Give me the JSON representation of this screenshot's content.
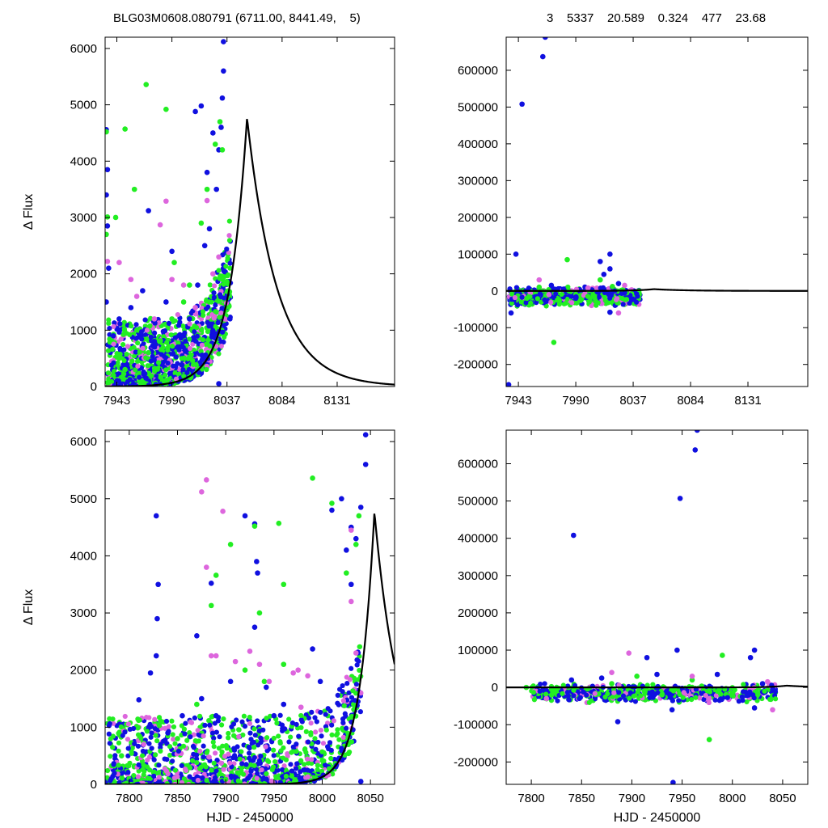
{
  "header": {
    "left": "BLG03M0608.080791 (6711.00, 8441.49,    5)",
    "right": "3    5337    20.589    0.324    477    23.68"
  },
  "colors": {
    "series_blue": "#1010e0",
    "series_green": "#22ee22",
    "series_violet": "#dd66dd",
    "model": "#000000"
  },
  "chart_data": [
    {
      "id": "top-left",
      "type": "scatter",
      "xlabel": "",
      "ylabel": "Δ Flux",
      "xlim": [
        7933,
        8180
      ],
      "ylim": [
        0,
        6200
      ],
      "xticks": [
        7943,
        7990,
        8037,
        8084,
        8131
      ],
      "yticks": [
        0,
        1000,
        2000,
        3000,
        4000,
        5000,
        6000
      ],
      "grid": false,
      "series": [
        {
          "color_key": "series_blue",
          "points": [
            [
              7934,
              4560
            ],
            [
              7935,
              3850
            ],
            [
              7934,
              3400
            ],
            [
              7935,
              2850
            ],
            [
              7936,
              2100
            ],
            [
              7934,
              1500
            ],
            [
              7940,
              900
            ],
            [
              7945,
              1200
            ],
            [
              7950,
              300
            ],
            [
              7955,
              1400
            ],
            [
              7965,
              1700
            ],
            [
              7970,
              3120
            ],
            [
              7975,
              800
            ],
            [
              7985,
              1500
            ],
            [
              7990,
              2400
            ],
            [
              7995,
              700
            ],
            [
              8010,
              4880
            ],
            [
              8015,
              4980
            ],
            [
              8020,
              3800
            ],
            [
              8025,
              4500
            ],
            [
              8030,
              4200
            ],
            [
              8032,
              4600
            ],
            [
              8033,
              5120
            ],
            [
              8034,
              5600
            ],
            [
              8034,
              6120
            ],
            [
              8028,
              3500
            ],
            [
              8022,
              2800
            ],
            [
              8018,
              2500
            ],
            [
              8012,
              1800
            ],
            [
              8005,
              1200
            ],
            [
              8000,
              900
            ],
            [
              8030,
              50
            ]
          ]
        },
        {
          "color_key": "series_green",
          "points": [
            [
              7934,
              4520
            ],
            [
              7935,
              3010
            ],
            [
              7934,
              2700
            ],
            [
              7942,
              3000
            ],
            [
              7950,
              4570
            ],
            [
              7958,
              3500
            ],
            [
              7968,
              5360
            ],
            [
              7985,
              4920
            ],
            [
              7992,
              2200
            ],
            [
              8005,
              1800
            ],
            [
              8015,
              2900
            ],
            [
              8020,
              3500
            ],
            [
              8027,
              4300
            ],
            [
              8031,
              4700
            ],
            [
              8033,
              4200
            ],
            [
              7960,
              1000
            ],
            [
              7970,
              600
            ],
            [
              7980,
              800
            ],
            [
              7990,
              1200
            ],
            [
              8000,
              1500
            ],
            [
              7945,
              500
            ],
            [
              7950,
              300
            ],
            [
              7940,
              200
            ]
          ]
        },
        {
          "color_key": "series_violet",
          "points": [
            [
              7935,
              2220
            ],
            [
              7945,
              2200
            ],
            [
              7955,
              1900
            ],
            [
              7980,
              2870
            ],
            [
              7985,
              3290
            ],
            [
              7990,
              1900
            ],
            [
              8000,
              1800
            ],
            [
              8010,
              1400
            ],
            [
              8020,
              3300
            ],
            [
              8025,
              2000
            ],
            [
              8030,
              2300
            ],
            [
              8035,
              1200
            ],
            [
              7960,
              1600
            ],
            [
              7975,
              1200
            ]
          ]
        }
      ],
      "model": {
        "t0": 8054.1,
        "fpeak": 4770,
        "tau": 15.0
      }
    },
    {
      "id": "top-right",
      "type": "scatter",
      "xlabel": "",
      "ylabel": "",
      "xlim": [
        7933,
        8180
      ],
      "ylim": [
        -260000,
        690000
      ],
      "xticks": [
        7943,
        7990,
        8037,
        8084,
        8131
      ],
      "yticks": [
        -200000,
        -100000,
        0,
        100000,
        200000,
        300000,
        400000,
        500000,
        600000
      ],
      "grid": false,
      "series": [
        {
          "color_key": "series_blue",
          "points": [
            [
              7935,
              -255000
            ],
            [
              7937,
              -60000
            ],
            [
              7941,
              100000
            ],
            [
              7946,
              508000
            ],
            [
              7963,
              637000
            ],
            [
              7965,
              690000
            ],
            [
              7970,
              15000
            ],
            [
              7980,
              5000
            ],
            [
              7990,
              -20000
            ],
            [
              8010,
              80000
            ],
            [
              8013,
              45000
            ],
            [
              8018,
              100000
            ],
            [
              8018,
              60000
            ],
            [
              8018,
              -58000
            ],
            [
              8020,
              10000
            ],
            [
              8030,
              -5000
            ],
            [
              8025,
              20000
            ]
          ]
        },
        {
          "color_key": "series_green",
          "points": [
            [
              7972,
              -140000
            ],
            [
              7983,
              85000
            ],
            [
              7950,
              -20000
            ],
            [
              7960,
              10000
            ],
            [
              7975,
              -25000
            ],
            [
              8000,
              -15000
            ],
            [
              8010,
              30000
            ],
            [
              8020,
              12000
            ]
          ]
        },
        {
          "color_key": "series_violet",
          "points": [
            [
              7960,
              30000
            ],
            [
              7968,
              -10000
            ],
            [
              8025,
              -60000
            ],
            [
              8030,
              15000
            ],
            [
              8000,
              8000
            ]
          ]
        }
      ],
      "band": {
        "x0": 7935,
        "x1": 8043,
        "y0": -15000,
        "y1": 15000
      },
      "model": {
        "t0": 8054.1,
        "fpeak": 4770,
        "tau": 15.0
      }
    },
    {
      "id": "bottom-left",
      "type": "scatter",
      "xlabel": "HJD - 2450000",
      "ylabel": "Δ Flux",
      "xlim": [
        7775,
        8075
      ],
      "ylim": [
        0,
        6200
      ],
      "xticks": [
        7800,
        7850,
        7900,
        7950,
        8000,
        8050
      ],
      "yticks": [
        0,
        1000,
        2000,
        3000,
        4000,
        5000,
        6000
      ],
      "grid": false,
      "series": [
        {
          "color_key": "series_blue",
          "points": [
            [
              7810,
              1480
            ],
            [
              7822,
              1950
            ],
            [
              7828,
              4700
            ],
            [
              7830,
              3500
            ],
            [
              7829,
              2900
            ],
            [
              7828,
              2250
            ],
            [
              7840,
              900
            ],
            [
              7855,
              1200
            ],
            [
              7870,
              2600
            ],
            [
              7875,
              1500
            ],
            [
              7885,
              3520
            ],
            [
              7890,
              1200
            ],
            [
              7905,
              1800
            ],
            [
              7920,
              4700
            ],
            [
              7930,
              4560
            ],
            [
              7932,
              3900
            ],
            [
              7933,
              3700
            ],
            [
              7950,
              1200
            ],
            [
              7960,
              1400
            ],
            [
              7990,
              2370
            ],
            [
              7998,
              1800
            ],
            [
              8010,
              4800
            ],
            [
              8020,
              5000
            ],
            [
              8025,
              4100
            ],
            [
              8030,
              4500
            ],
            [
              8035,
              4300
            ],
            [
              8040,
              4850
            ],
            [
              8045,
              5600
            ],
            [
              8045,
              6120
            ],
            [
              8030,
              3500
            ],
            [
              8040,
              50
            ],
            [
              7930,
              2750
            ],
            [
              7942,
              1700
            ]
          ]
        },
        {
          "color_key": "series_green",
          "points": [
            [
              7792,
              500
            ],
            [
              7885,
              3130
            ],
            [
              7890,
              3660
            ],
            [
              7905,
              4200
            ],
            [
              7930,
              4520
            ],
            [
              7935,
              3000
            ],
            [
              7955,
              4570
            ],
            [
              7960,
              3500
            ],
            [
              7990,
              5360
            ],
            [
              8010,
              4920
            ],
            [
              8025,
              3700
            ],
            [
              8035,
              4200
            ],
            [
              8038,
              4700
            ],
            [
              7920,
              2000
            ],
            [
              7940,
              1800
            ],
            [
              7960,
              2100
            ],
            [
              7870,
              1400
            ],
            [
              7850,
              800
            ]
          ]
        },
        {
          "color_key": "series_violet",
          "points": [
            [
              7815,
              700
            ],
            [
              7875,
              5120
            ],
            [
              7880,
              5330
            ],
            [
              7880,
              3800
            ],
            [
              7885,
              2250
            ],
            [
              7890,
              2250
            ],
            [
              7897,
              4780
            ],
            [
              7910,
              2150
            ],
            [
              7925,
              2330
            ],
            [
              7935,
              2100
            ],
            [
              7945,
              1800
            ],
            [
              7970,
              1950
            ],
            [
              7975,
              2000
            ],
            [
              7978,
              1350
            ],
            [
              7985,
              1900
            ],
            [
              8030,
              4450
            ],
            [
              8030,
              3200
            ],
            [
              8035,
              2300
            ],
            [
              8040,
              1600
            ]
          ]
        }
      ],
      "model": {
        "t0": 8054.1,
        "fpeak": 4770,
        "tau": 15.0
      }
    },
    {
      "id": "bottom-right",
      "type": "scatter",
      "xlabel": "HJD - 2450000",
      "ylabel": "",
      "xlim": [
        7775,
        8075
      ],
      "ylim": [
        -260000,
        690000
      ],
      "xticks": [
        7800,
        7850,
        7900,
        7950,
        8000,
        8050
      ],
      "yticks": [
        -200000,
        -100000,
        0,
        100000,
        200000,
        300000,
        400000,
        500000,
        600000
      ],
      "grid": false,
      "series": [
        {
          "color_key": "series_blue",
          "points": [
            [
              7842,
              408000
            ],
            [
              7948,
              507000
            ],
            [
              7963,
              637000
            ],
            [
              7965,
              690000
            ],
            [
              7941,
              -255000
            ],
            [
              7886,
              -92000
            ],
            [
              7945,
              100000
            ],
            [
              7940,
              -60000
            ],
            [
              7915,
              80000
            ],
            [
              7925,
              35000
            ],
            [
              8018,
              80000
            ],
            [
              8022,
              100000
            ],
            [
              8022,
              -55000
            ],
            [
              7985,
              35000
            ],
            [
              7870,
              25000
            ],
            [
              7840,
              20000
            ],
            [
              8030,
              10000
            ]
          ]
        },
        {
          "color_key": "series_green",
          "points": [
            [
              7977,
              -140000
            ],
            [
              7990,
              86000
            ],
            [
              7795,
              0
            ],
            [
              7905,
              30000
            ],
            [
              7930,
              -20000
            ],
            [
              7960,
              20000
            ],
            [
              8000,
              -15000
            ],
            [
              7820,
              -5000
            ],
            [
              7880,
              10000
            ]
          ]
        },
        {
          "color_key": "series_violet",
          "points": [
            [
              7897,
              92000
            ],
            [
              7815,
              -30000
            ],
            [
              7880,
              40000
            ],
            [
              7960,
              30000
            ],
            [
              8040,
              -60000
            ],
            [
              8035,
              15000
            ]
          ]
        }
      ],
      "band": {
        "x0": 7800,
        "x1": 8043,
        "y0": -15000,
        "y1": 15000
      },
      "model": {
        "t0": 8054.1,
        "fpeak": 4770,
        "tau": 15.0
      }
    }
  ]
}
